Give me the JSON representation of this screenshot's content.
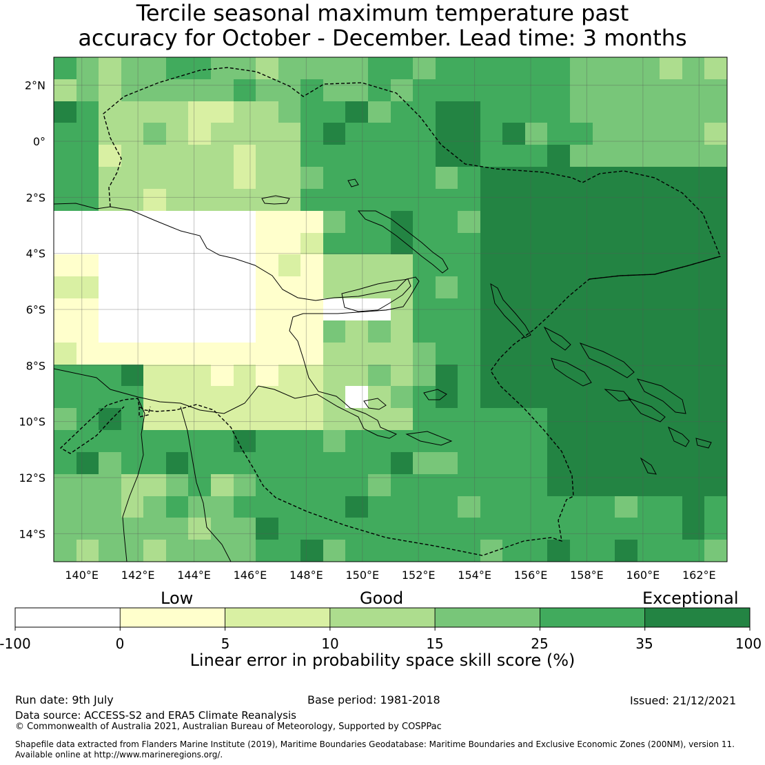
{
  "title_line1": "Tercile seasonal maximum temperature past",
  "title_line2": "accuracy for October - December. Lead time: 3 months",
  "map": {
    "lon_range": [
      139,
      163
    ],
    "lat_range": [
      -15,
      3
    ],
    "lon_ticks": [
      {
        "value": 140,
        "label": "140°E"
      },
      {
        "value": 142,
        "label": "142°E"
      },
      {
        "value": 144,
        "label": "144°E"
      },
      {
        "value": 146,
        "label": "146°E"
      },
      {
        "value": 148,
        "label": "148°E"
      },
      {
        "value": 150,
        "label": "150°E"
      },
      {
        "value": 152,
        "label": "152°E"
      },
      {
        "value": 154,
        "label": "154°E"
      },
      {
        "value": 156,
        "label": "156°E"
      },
      {
        "value": 158,
        "label": "158°E"
      },
      {
        "value": 160,
        "label": "160°E"
      },
      {
        "value": 162,
        "label": "162°E"
      }
    ],
    "lat_ticks": [
      {
        "value": 2,
        "label": "2°N"
      },
      {
        "value": 0,
        "label": "0°"
      },
      {
        "value": -2,
        "label": "2°S"
      },
      {
        "value": -4,
        "label": "4°S"
      },
      {
        "value": -6,
        "label": "6°S"
      },
      {
        "value": -8,
        "label": "8°S"
      },
      {
        "value": -10,
        "label": "10°S"
      },
      {
        "value": -12,
        "label": "12°S"
      },
      {
        "value": -14,
        "label": "14°S"
      }
    ],
    "grid_lines": true,
    "cell_colors": [
      "#ffffff",
      "#ffffcc",
      "#d9f0a3",
      "#addd8e",
      "#78c679",
      "#41ab5d",
      "#238443"
    ]
  },
  "colorbar": {
    "categories": [
      "Low",
      "Good",
      "Exceptional"
    ],
    "bins": [
      {
        "from": -100,
        "to": 0,
        "color": "#ffffff"
      },
      {
        "from": 0,
        "to": 5,
        "color": "#ffffcc"
      },
      {
        "from": 5,
        "to": 10,
        "color": "#d9f0a3"
      },
      {
        "from": 10,
        "to": 15,
        "color": "#addd8e"
      },
      {
        "from": 15,
        "to": 25,
        "color": "#78c679"
      },
      {
        "from": 25,
        "to": 35,
        "color": "#41ab5d"
      },
      {
        "from": 35,
        "to": 100,
        "color": "#238443"
      }
    ],
    "tick_labels": [
      "-100",
      "0",
      "5",
      "10",
      "15",
      "25",
      "35",
      "100"
    ],
    "title": "Linear error in probability space skill score (%)"
  },
  "footer": {
    "run_date": "Run date: 9th July",
    "base_period": "Base period: 1981-2018",
    "issued": "Issued: 21/12/2021",
    "data_source": "Data source: ACCESS-S2 and ERA5 Climate Reanalysis",
    "copyright": "© Commonwealth of Australia 2021, Australian Bureau of Meteorology, Supported by COSPPac",
    "shapefile_line1": "Shapefile data extracted from Flanders Marine Institute (2019), Maritime Boundaries Geodatabase: Maritime Boundaries and Exclusive Economic Zones (200NM), version 11.",
    "shapefile_line2": "Available online at http://www.marineregions.org/."
  }
}
